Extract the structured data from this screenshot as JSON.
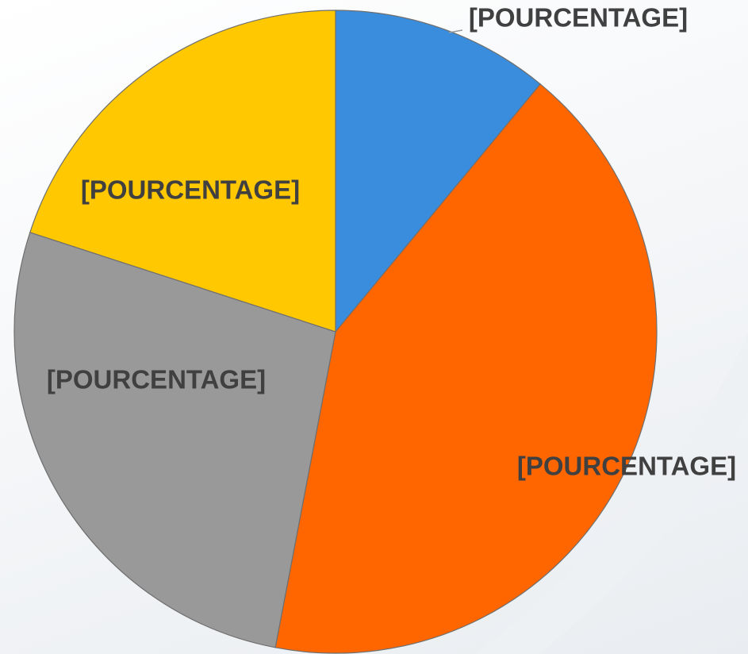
{
  "chart_data": {
    "type": "pie",
    "values": [
      11,
      42,
      27,
      20
    ],
    "value_labels": [
      "[POURCENTAGE]",
      "[POURCENTAGE]",
      "[POURCENTAGE]",
      "[POURCENTAGE]"
    ],
    "colors": [
      "#3a8ddd",
      "#ff6600",
      "#999999",
      "#ffc800"
    ]
  }
}
